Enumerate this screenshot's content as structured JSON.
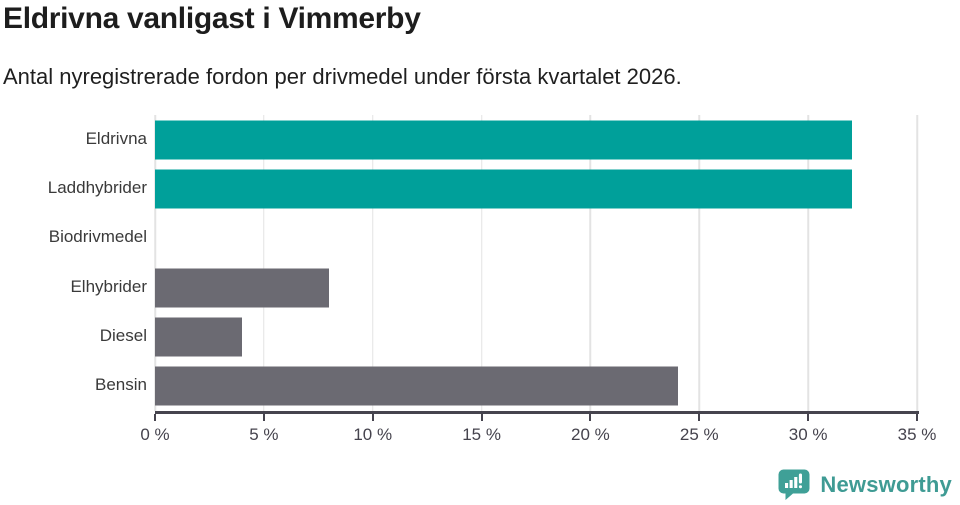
{
  "header": {
    "title": "Eldrivna vanligast i Vimmerby",
    "subtitle": "Antal nyregistrerade fordon per drivmedel under första kvartalet 2026."
  },
  "chart_data": {
    "type": "bar",
    "orientation": "horizontal",
    "title": "Eldrivna vanligast i Vimmerby",
    "subtitle": "Antal nyregistrerade fordon per drivmedel under första kvartalet 2026.",
    "categories": [
      "Eldrivna",
      "Laddhybrider",
      "Biodrivmedel",
      "Elhybrider",
      "Diesel",
      "Bensin"
    ],
    "values": [
      32,
      32,
      0,
      8,
      4,
      24
    ],
    "unit": "%",
    "xlim": [
      0,
      35
    ],
    "xticks": [
      0,
      5,
      10,
      15,
      20,
      25,
      30,
      35
    ],
    "xtick_labels": [
      "0 %",
      "5 %",
      "10 %",
      "15 %",
      "20 %",
      "25 %",
      "30 %",
      "35 %"
    ],
    "bar_colors": [
      "#00a09a",
      "#00a09a",
      "#6b6a72",
      "#6b6a72",
      "#6b6a72",
      "#6b6a72"
    ],
    "grid": "vertical-gridlines-on",
    "legend": "none",
    "xlabel": "",
    "ylabel": ""
  },
  "colors": {
    "highlight_teal": "#00a09a",
    "neutral_gray": "#6b6a72",
    "gridline": "#e3e3e3",
    "axis": "#46444e",
    "title_text": "#1d1d1d",
    "label_text": "#3a3a3a",
    "logo_teal": "#3fa097",
    "logo_text_teal": "#3f9b94"
  },
  "footer": {
    "brand": "Newsworthy",
    "logo_icon": "newsworthy-speech-bubble-bar-chart-icon"
  }
}
